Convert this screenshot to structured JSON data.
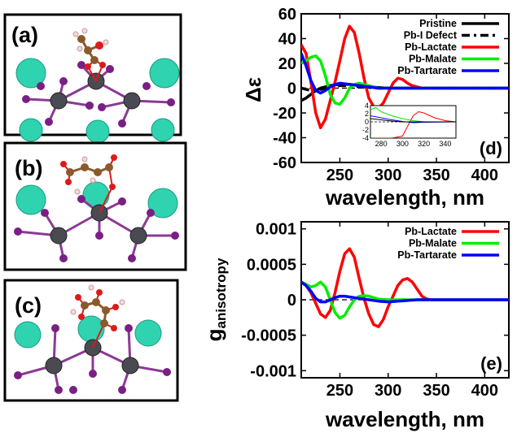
{
  "structure_panels": [
    {
      "label": "(a)"
    },
    {
      "label": "(b)"
    },
    {
      "label": "(c)"
    }
  ],
  "colors": {
    "pristine": "#000000",
    "pb_i_defect": "#000000",
    "pb_lactate": "#ff0000",
    "pb_malate": "#00ee00",
    "pb_tartarate": "#0000ff",
    "atom_cs": "#2fd3b0",
    "atom_pb": "#4a4a52",
    "atom_i": "#7a1f84",
    "atom_c": "#8b5a2b",
    "atom_o": "#dd1a1a",
    "atom_h": "#f2dada"
  },
  "chart_data": [
    {
      "type": "line",
      "panel_label": "(d)",
      "xlabel": "wavelength, nm",
      "ylabel": "Δε",
      "xlim": [
        210,
        425
      ],
      "ylim": [
        -60,
        60
      ],
      "x_ticks": [
        250,
        300,
        350,
        400
      ],
      "y_ticks": [
        -60,
        -40,
        -20,
        0,
        20,
        40,
        60
      ],
      "legend_position": "top-right",
      "series": [
        {
          "name": "Pristine",
          "x": [
            210,
            215,
            220,
            225,
            230,
            240,
            250,
            260,
            270,
            280,
            290,
            300,
            310,
            330,
            425
          ],
          "y": [
            -10,
            -8,
            -5,
            -2,
            0,
            2,
            3,
            3,
            2,
            1,
            0.5,
            0,
            0,
            0,
            0
          ]
        },
        {
          "name": "Pb-I Defect",
          "x": [
            210,
            220,
            230,
            240,
            250,
            260,
            270,
            280,
            290,
            300,
            425
          ],
          "y": [
            0,
            -2,
            -1,
            1,
            2,
            2,
            1,
            0.5,
            0,
            0,
            0
          ]
        },
        {
          "name": "Pb-Lactate",
          "x": [
            210,
            215,
            220,
            225,
            230,
            235,
            240,
            245,
            250,
            255,
            260,
            265,
            270,
            275,
            280,
            285,
            290,
            295,
            300,
            305,
            310,
            315,
            320,
            325,
            330,
            335,
            340,
            350,
            360,
            425
          ],
          "y": [
            35,
            28,
            5,
            -20,
            -32,
            -25,
            -10,
            5,
            22,
            40,
            50,
            45,
            28,
            8,
            -8,
            -15,
            -16,
            -12,
            -4,
            4,
            8,
            7,
            4,
            2,
            1,
            0,
            0,
            0,
            0,
            0
          ]
        },
        {
          "name": "Pb-Malate",
          "x": [
            210,
            215,
            220,
            225,
            230,
            235,
            240,
            245,
            250,
            255,
            260,
            265,
            270,
            275,
            280,
            285,
            290,
            300,
            320,
            425
          ],
          "y": [
            20,
            22,
            25,
            26,
            22,
            10,
            -5,
            -12,
            -13,
            -8,
            0,
            3,
            4,
            3,
            2,
            1,
            0,
            0,
            0,
            0
          ]
        },
        {
          "name": "Pb-Tartarate",
          "x": [
            210,
            215,
            220,
            225,
            230,
            235,
            240,
            245,
            250,
            260,
            270,
            280,
            290,
            300,
            425
          ],
          "y": [
            28,
            18,
            6,
            -2,
            -4,
            -2,
            1,
            3,
            4,
            3,
            2,
            1,
            0,
            0,
            0
          ]
        }
      ],
      "inset": {
        "xlim": [
          270,
          350
        ],
        "ylim": [
          -4,
          4
        ],
        "x_ticks": [
          280,
          300,
          320,
          340
        ],
        "y_ticks": [
          -4,
          -2,
          0,
          2,
          4
        ]
      }
    },
    {
      "type": "line",
      "panel_label": "(e)",
      "xlabel": "wavelength, nm",
      "ylabel": "ganisotropy",
      "ylabel_main": "g",
      "ylabel_sub": "anisotropy",
      "xlim": [
        210,
        425
      ],
      "ylim": [
        -0.0011,
        0.0011
      ],
      "x_ticks": [
        250,
        300,
        350,
        400
      ],
      "y_ticks": [
        -0.001,
        -0.0005,
        0,
        0.0005,
        0.001
      ],
      "y_tick_labels": [
        "-0.001",
        "-0.0005",
        "0",
        "0.0005",
        "0.001"
      ],
      "legend_position": "top-right",
      "series": [
        {
          "name": "Pb-Lactate",
          "x": [
            210,
            215,
            220,
            225,
            230,
            235,
            240,
            245,
            250,
            255,
            260,
            265,
            270,
            275,
            280,
            285,
            290,
            295,
            300,
            305,
            310,
            315,
            320,
            325,
            330,
            335,
            340,
            345,
            350,
            360,
            425
          ],
          "y": [
            0.00025,
            0.0002,
            0.0001,
            -5e-05,
            -0.0002,
            -0.00025,
            -0.00015,
            0.0001,
            0.0004,
            0.00065,
            0.00072,
            0.0006,
            0.0003,
            2e-05,
            -0.0002,
            -0.00035,
            -0.00038,
            -0.00028,
            -0.0001,
            5e-05,
            0.0002,
            0.00028,
            0.0003,
            0.00025,
            0.00015,
            5e-05,
            1e-05,
            0,
            0,
            0,
            0
          ]
        },
        {
          "name": "Pb-Malate",
          "x": [
            210,
            215,
            220,
            225,
            230,
            235,
            240,
            245,
            250,
            255,
            260,
            265,
            270,
            275,
            280,
            285,
            290,
            300,
            310,
            425
          ],
          "y": [
            0.00025,
            0.00022,
            0.00018,
            0.0002,
            0.00025,
            0.00018,
            0.0,
            -0.00018,
            -0.00026,
            -0.00022,
            -0.0001,
            0.0,
            5e-05,
            6e-05,
            5e-05,
            3e-05,
            1e-05,
            0,
            0,
            0
          ]
        },
        {
          "name": "Pb-Tartarate",
          "x": [
            210,
            215,
            220,
            225,
            230,
            235,
            240,
            245,
            250,
            255,
            260,
            270,
            280,
            290,
            300,
            310,
            320,
            330,
            425
          ],
          "y": [
            0.00025,
            0.0002,
            0.00012,
            2e-05,
            -3e-05,
            -3e-05,
            0.0,
            3e-05,
            5e-05,
            5e-05,
            4e-05,
            2e-05,
            0.0,
            -2e-05,
            -3e-05,
            -2e-05,
            -1e-05,
            0,
            0
          ]
        }
      ]
    }
  ]
}
